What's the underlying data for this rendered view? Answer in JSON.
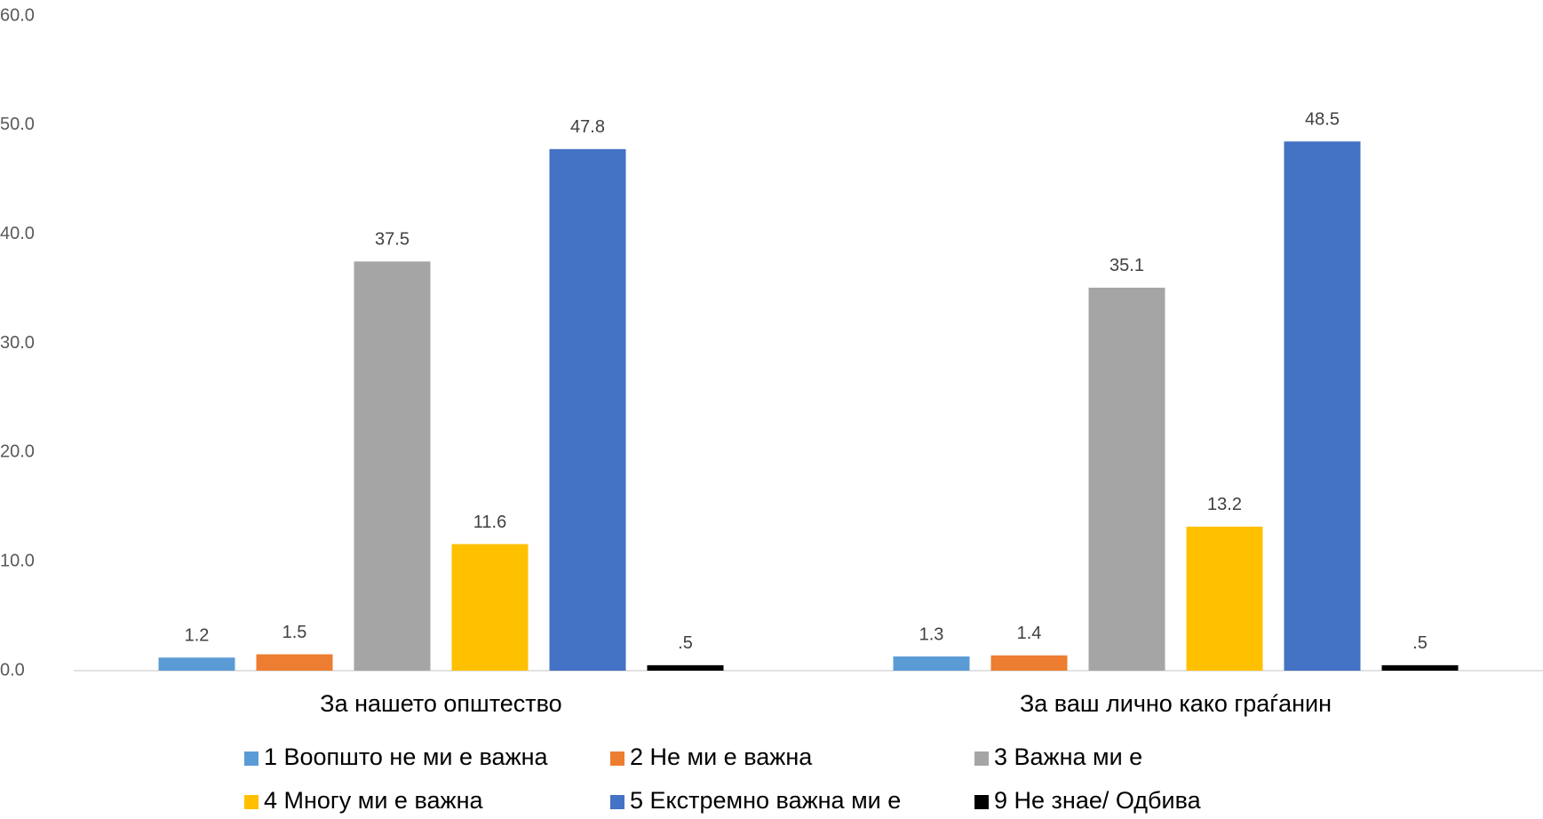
{
  "chart_data": {
    "type": "bar",
    "categories": [
      "За нашето општество",
      "За ваш лично како граѓанин"
    ],
    "series": [
      {
        "name": "1 Воопшто не ми е важна",
        "color": "#5b9bd5",
        "values": [
          1.2,
          1.3
        ]
      },
      {
        "name": "2 Не ми е важна",
        "color": "#ed7d31",
        "values": [
          1.5,
          1.4
        ]
      },
      {
        "name": "3 Важна ми е",
        "color": "#a5a5a5",
        "values": [
          37.5,
          35.1
        ]
      },
      {
        "name": "4 Многу ми е важна",
        "color": "#ffc000",
        "values": [
          11.6,
          13.2
        ]
      },
      {
        "name": "5 Екстремно важна ми е",
        "color": "#4472c4",
        "values": [
          47.8,
          48.5
        ]
      },
      {
        "name": "9 Не знае/ Одбива",
        "color": "#000000",
        "values": [
          0.5,
          0.5
        ],
        "value_labels": [
          ".5",
          ".5"
        ]
      }
    ],
    "ylim": [
      0,
      60
    ],
    "yticks": [
      {
        "value": 0,
        "label": "0.0"
      },
      {
        "value": 10,
        "label": "10.0"
      },
      {
        "value": 20,
        "label": "20.0"
      },
      {
        "value": 30,
        "label": "30.0"
      },
      {
        "value": 40,
        "label": "40.0"
      },
      {
        "value": 50,
        "label": "50.0"
      },
      {
        "value": 60,
        "label": "60.0"
      }
    ],
    "legend": "bottom"
  }
}
